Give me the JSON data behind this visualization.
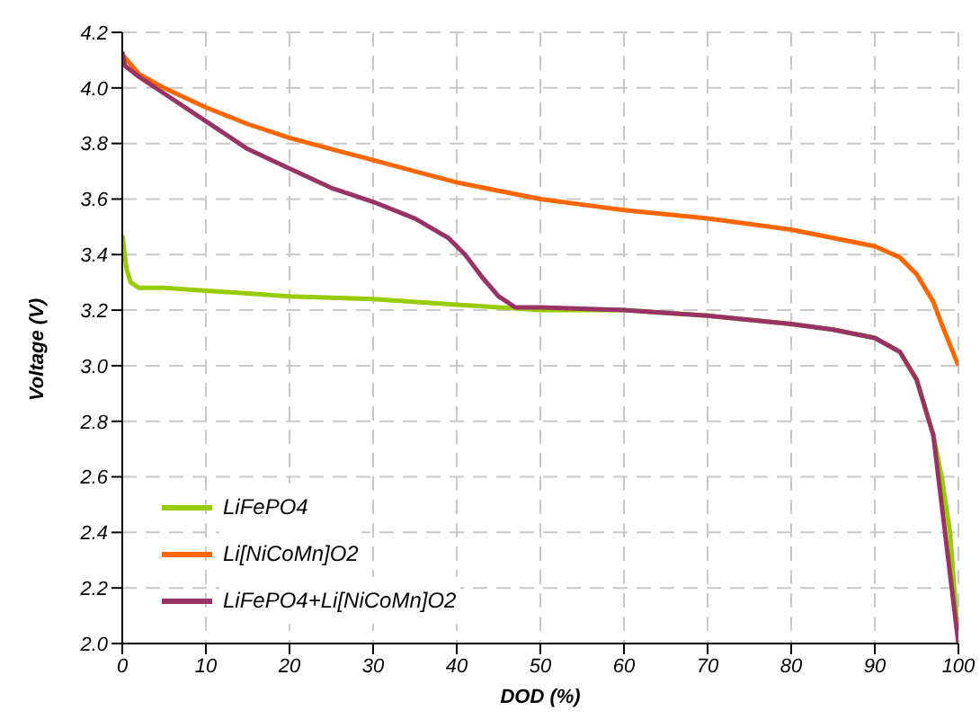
{
  "chart_data": {
    "type": "line",
    "xlabel": "DOD (%)",
    "ylabel": "Voltage (V)",
    "xlim": [
      0,
      100
    ],
    "xticks": [
      0,
      10,
      20,
      30,
      40,
      50,
      60,
      70,
      80,
      90,
      100
    ],
    "ylim": [
      2,
      4.2
    ],
    "yticks": [
      {
        "value": 2,
        "label": "2.0"
      },
      2.2,
      2.4,
      2.6,
      2.8,
      {
        "value": 3,
        "label": "3.0"
      },
      3.2,
      3.4,
      3.6,
      3.8,
      {
        "value": 4,
        "label": "4.0"
      },
      4.2
    ],
    "grid": true,
    "legend": "bottom left",
    "marker": "none",
    "line_style": "solid",
    "series": [
      {
        "name": "LiFePO4",
        "color": "#99cc00",
        "x": [
          0,
          0.5,
          1,
          2,
          5,
          10,
          20,
          30,
          40,
          50,
          60,
          70,
          80,
          85,
          90,
          93,
          95,
          97,
          98,
          99,
          99.5,
          100
        ],
        "values": [
          3.47,
          3.35,
          3.3,
          3.28,
          3.28,
          3.27,
          3.25,
          3.24,
          3.22,
          3.2,
          3.2,
          3.18,
          3.15,
          3.13,
          3.1,
          3.05,
          2.95,
          2.75,
          2.6,
          2.4,
          2.2,
          2.0
        ]
      },
      {
        "name": "Li[NiCoMn]O2",
        "color": "#ff6600",
        "x": [
          0,
          2,
          5,
          10,
          15,
          20,
          25,
          30,
          35,
          40,
          45,
          50,
          55,
          60,
          70,
          80,
          85,
          90,
          93,
          95,
          97,
          98,
          100
        ],
        "values": [
          4.12,
          4.05,
          4.0,
          3.93,
          3.87,
          3.82,
          3.78,
          3.74,
          3.7,
          3.66,
          3.63,
          3.6,
          3.58,
          3.56,
          3.53,
          3.49,
          3.46,
          3.43,
          3.39,
          3.33,
          3.23,
          3.15,
          3.0
        ]
      },
      {
        "name": "LiFePO4+Li[NiCoMn]O2",
        "color": "#993366",
        "x": [
          0,
          0.3,
          2,
          5,
          10,
          15,
          20,
          25,
          30,
          35,
          39,
          41,
          43,
          45,
          47,
          50,
          60,
          70,
          80,
          85,
          90,
          93,
          95,
          97,
          98,
          99,
          100
        ],
        "values": [
          4.13,
          4.08,
          4.04,
          3.98,
          3.88,
          3.78,
          3.71,
          3.64,
          3.59,
          3.53,
          3.46,
          3.4,
          3.32,
          3.25,
          3.21,
          3.21,
          3.2,
          3.18,
          3.15,
          3.13,
          3.1,
          3.05,
          2.95,
          2.75,
          2.5,
          2.25,
          2.0
        ]
      }
    ]
  }
}
